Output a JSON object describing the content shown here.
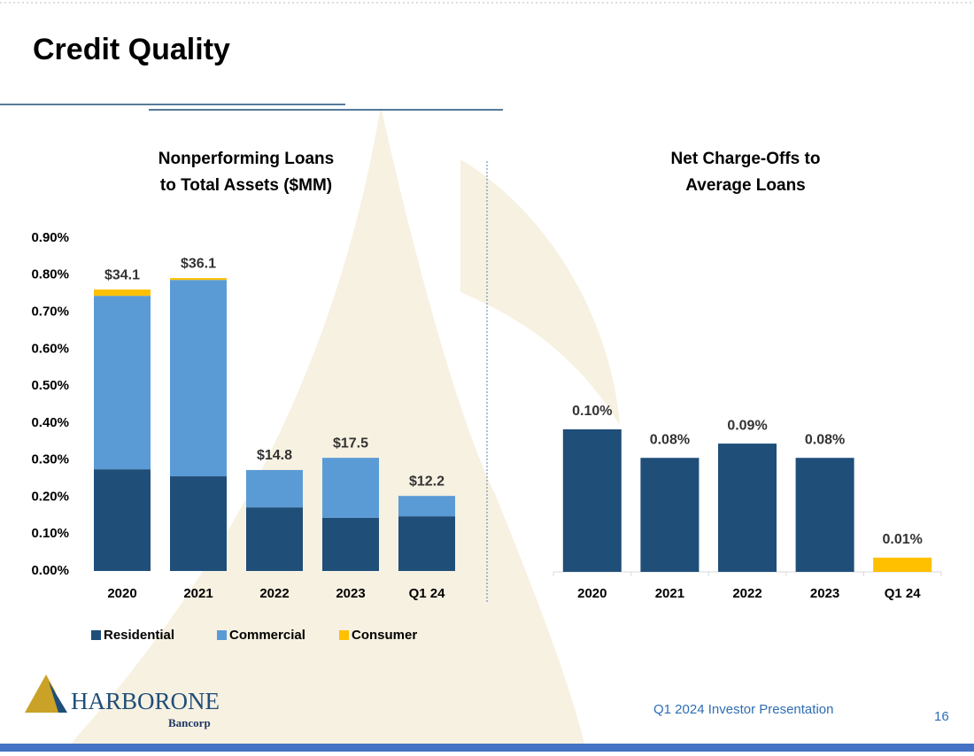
{
  "title": "Credit Quality",
  "chart_data": [
    {
      "type": "stacked_bar",
      "title": [
        "Nonperforming Loans",
        "to Total Assets ($MM)"
      ],
      "categories": [
        "2020",
        "2021",
        "2022",
        "2023",
        "Q1 24"
      ],
      "series": [
        {
          "name": "Residential",
          "color": "#1f4e79",
          "values": [
            0.275,
            0.256,
            0.172,
            0.144,
            0.148
          ]
        },
        {
          "name": "Commercial",
          "color": "#5b9bd5",
          "values": [
            0.469,
            0.531,
            0.101,
            0.162,
            0.055
          ]
        },
        {
          "name": "Consumer",
          "color": "#ffc000",
          "values": [
            0.017,
            0.005,
            0,
            0,
            0
          ]
        }
      ],
      "annotations": [
        "$34.1",
        "$36.1",
        "$14.8",
        "$17.5",
        "$12.2"
      ],
      "ylim": [
        0,
        0.9
      ],
      "yticks": [
        {
          "value": 0,
          "label": "0.00%"
        },
        {
          "value": 0.1,
          "label": "0.10%"
        },
        {
          "value": 0.2,
          "label": "0.20%"
        },
        {
          "value": 0.3,
          "label": "0.30%"
        },
        {
          "value": 0.4,
          "label": "0.40%"
        },
        {
          "value": 0.5,
          "label": "0.50%"
        },
        {
          "value": 0.6,
          "label": "0.60%"
        },
        {
          "value": 0.7,
          "label": "0.70%"
        },
        {
          "value": 0.8,
          "label": "0.80%"
        },
        {
          "value": 0.9,
          "label": "0.90%"
        }
      ],
      "grid": false,
      "legend": "bottom"
    },
    {
      "type": "bar",
      "title": [
        "Net Charge-Offs to",
        "Average Loans"
      ],
      "categories": [
        "2020",
        "2021",
        "2022",
        "2023",
        "Q1 24"
      ],
      "values": [
        0.1,
        0.08,
        0.09,
        0.08,
        0.01
      ],
      "value_labels": [
        "0.10%",
        "0.08%",
        "0.09%",
        "0.08%",
        "0.01%"
      ],
      "colors": [
        "#1f4e79",
        "#1f4e79",
        "#1f4e79",
        "#1f4e79",
        "#ffc000"
      ]
    }
  ],
  "logo": {
    "name": "HARBORONE",
    "sub": "Bancorp"
  },
  "footer": "Q1 2024 Investor Presentation",
  "page_number": "16"
}
